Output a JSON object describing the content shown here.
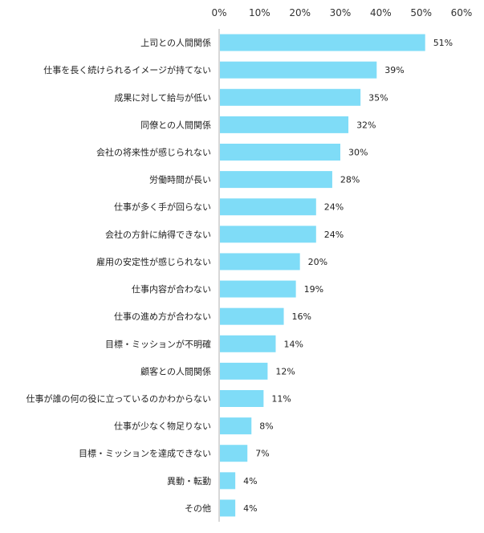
{
  "chart_data": {
    "type": "bar",
    "orientation": "horizontal",
    "categories": [
      "上司との人間関係",
      "仕事を長く続けられるイメージが持てない",
      "成果に対して給与が低い",
      "同僚との人間関係",
      "会社の将来性が感じられない",
      "労働時間が長い",
      "仕事が多く手が回らない",
      "会社の方針に納得できない",
      "雇用の安定性が感じられない",
      "仕事内容が合わない",
      "仕事の進め方が合わない",
      "目標・ミッションが不明確",
      "顧客との人間関係",
      "仕事が誰の何の役に立っているのかわからない",
      "仕事が少なく物足りない",
      "目標・ミッションを達成できない",
      "異動・転勤",
      "その他"
    ],
    "values": [
      51,
      39,
      35,
      32,
      30,
      28,
      24,
      24,
      20,
      19,
      16,
      14,
      12,
      11,
      8,
      7,
      4,
      4
    ],
    "value_labels": [
      "51%",
      "39%",
      "35%",
      "32%",
      "30%",
      "28%",
      "24%",
      "24%",
      "20%",
      "19%",
      "16%",
      "14%",
      "12%",
      "11%",
      "8%",
      "7%",
      "4%",
      "4%"
    ],
    "xlim": [
      0,
      60
    ],
    "x_ticks": [
      0,
      10,
      20,
      30,
      40,
      50,
      60
    ],
    "x_tick_labels": [
      "0%",
      "10%",
      "20%",
      "30%",
      "40%",
      "50%",
      "60%"
    ],
    "axis_position": "top",
    "grid": false,
    "colors": {
      "bar": "#7fdcf7",
      "axis": "#b0b0b0"
    }
  }
}
